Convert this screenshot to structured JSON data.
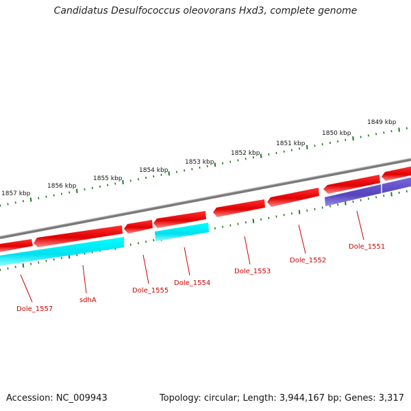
{
  "title": "Candidatus Desulfococcus oleovorans Hxd3, complete genome",
  "accession_text": "Accession: NC_009943",
  "topology_text": "Topology: circular; Length: 3,944,167 bp; Genes: 3,317",
  "kbp_labels": [
    "1857 kbp",
    "1856 kbp",
    "1855 kbp",
    "1854 kbp",
    "1853 kbp",
    "1852 kbp",
    "1851 kbp",
    "1850 kbp",
    "1849 kbp"
  ],
  "genes": [
    {
      "name": "Dole_1557"
    },
    {
      "name": "sdhA"
    },
    {
      "name": "Dole_1555"
    },
    {
      "name": "Dole_1554"
    },
    {
      "name": "Dole_1553"
    },
    {
      "name": "Dole_1552"
    },
    {
      "name": "Dole_1551"
    }
  ],
  "colors": {
    "cds": "#ee0000",
    "cds_shade": "#ff7777",
    "rna_feature": "#00e5ee",
    "other_feature": "#6655cc",
    "backbone": "#808080",
    "ticks": "#1a7a1a",
    "label": "#cc0000"
  }
}
